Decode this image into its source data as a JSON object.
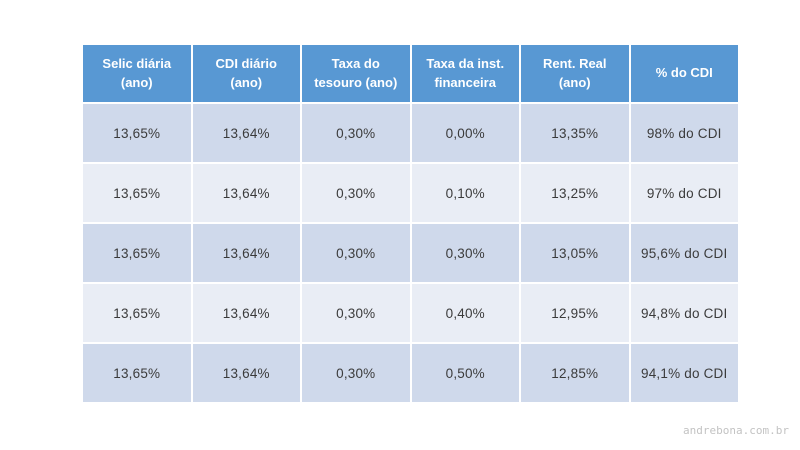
{
  "chart_data": {
    "type": "table",
    "title": "",
    "columns": [
      "Selic diária\n(ano)",
      "CDI diário\n(ano)",
      "Taxa do\ntesouro (ano)",
      "Taxa da inst.\nfinanceira",
      "Rent. Real\n(ano)",
      "% do CDI"
    ],
    "rows": [
      [
        "13,65%",
        "13,64%",
        "0,30%",
        "0,00%",
        "13,35%",
        "98% do CDI"
      ],
      [
        "13,65%",
        "13,64%",
        "0,30%",
        "0,10%",
        "13,25%",
        "97% do CDI"
      ],
      [
        "13,65%",
        "13,64%",
        "0,30%",
        "0,30%",
        "13,05%",
        "95,6% do CDI"
      ],
      [
        "13,65%",
        "13,64%",
        "0,30%",
        "0,40%",
        "12,95%",
        "94,8% do CDI"
      ],
      [
        "13,65%",
        "13,64%",
        "0,30%",
        "0,50%",
        "12,85%",
        "94,1% do CDI"
      ]
    ],
    "layout_hints": {
      "banded_rows": true,
      "band_pattern": [
        "dark",
        "light",
        "dark",
        "light",
        "dark"
      ]
    }
  },
  "watermark": "andrebona.com.br",
  "colors": {
    "header_bg": "#5898d3",
    "header_text": "#ffffff",
    "row_band_dark": "#cfd9eb",
    "row_band_light": "#e9edf5",
    "cell_text": "#3b3b3b",
    "watermark_text": "#c3c3c3",
    "page_bg": "#ffffff"
  }
}
